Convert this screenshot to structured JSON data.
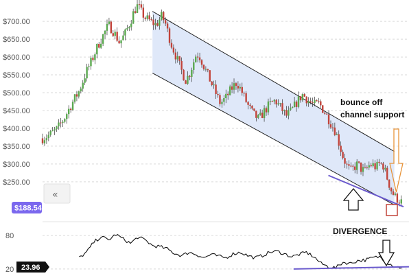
{
  "chart_data": [
    {
      "type": "candlestick",
      "y_ticks": [
        "$700.00",
        "$650.00",
        "$600.00",
        "$550.00",
        "$500.00",
        "$450.00",
        "$400.00",
        "$350.00",
        "$300.00",
        "$250.00"
      ],
      "ylim": [
        190,
        760
      ],
      "last_price_label": "$188.54",
      "channel": {
        "upper": [
          [
            0.3,
            728
          ],
          [
            0.96,
            335
          ]
        ],
        "lower": [
          [
            0.3,
            555
          ],
          [
            0.96,
            185
          ]
        ]
      },
      "support_trendline": [
        [
          0.78,
          268
        ],
        [
          0.985,
          180
        ]
      ],
      "price_path": [
        [
          0.0,
          372
        ],
        [
          0.02,
          382
        ],
        [
          0.04,
          398
        ],
        [
          0.06,
          430
        ],
        [
          0.08,
          470
        ],
        [
          0.1,
          505
        ],
        [
          0.12,
          560
        ],
        [
          0.135,
          592
        ],
        [
          0.15,
          630
        ],
        [
          0.165,
          660
        ],
        [
          0.18,
          690
        ],
        [
          0.195,
          670
        ],
        [
          0.21,
          640
        ],
        [
          0.225,
          665
        ],
        [
          0.24,
          700
        ],
        [
          0.25,
          730
        ],
        [
          0.26,
          745
        ],
        [
          0.27,
          725
        ],
        [
          0.28,
          710
        ],
        [
          0.295,
          700
        ],
        [
          0.31,
          690
        ],
        [
          0.325,
          715
        ],
        [
          0.335,
          695
        ],
        [
          0.35,
          640
        ],
        [
          0.365,
          600
        ],
        [
          0.38,
          560
        ],
        [
          0.39,
          535
        ],
        [
          0.4,
          550
        ],
        [
          0.41,
          580
        ],
        [
          0.42,
          610
        ],
        [
          0.43,
          600
        ],
        [
          0.44,
          575
        ],
        [
          0.455,
          540
        ],
        [
          0.47,
          505
        ],
        [
          0.485,
          470
        ],
        [
          0.5,
          485
        ],
        [
          0.515,
          510
        ],
        [
          0.53,
          530
        ],
        [
          0.545,
          500
        ],
        [
          0.56,
          465
        ],
        [
          0.575,
          440
        ],
        [
          0.59,
          425
        ],
        [
          0.605,
          448
        ],
        [
          0.62,
          468
        ],
        [
          0.635,
          478
        ],
        [
          0.65,
          458
        ],
        [
          0.665,
          435
        ],
        [
          0.68,
          450
        ],
        [
          0.695,
          475
        ],
        [
          0.71,
          495
        ],
        [
          0.725,
          478
        ],
        [
          0.74,
          465
        ],
        [
          0.755,
          470
        ],
        [
          0.77,
          445
        ],
        [
          0.785,
          418
        ],
        [
          0.8,
          390
        ],
        [
          0.81,
          355
        ],
        [
          0.82,
          320
        ],
        [
          0.83,
          295
        ],
        [
          0.84,
          280
        ],
        [
          0.85,
          290
        ],
        [
          0.86,
          300
        ],
        [
          0.87,
          285
        ],
        [
          0.88,
          280
        ],
        [
          0.89,
          295
        ],
        [
          0.9,
          298
        ],
        [
          0.91,
          290
        ],
        [
          0.92,
          302
        ],
        [
          0.93,
          295
        ],
        [
          0.94,
          262
        ],
        [
          0.95,
          230
        ],
        [
          0.96,
          210
        ],
        [
          0.97,
          200
        ],
        [
          0.98,
          193
        ]
      ]
    },
    {
      "type": "line",
      "series": [],
      "y_ticks": [
        "80",
        "20"
      ],
      "ylim": [
        10,
        90
      ],
      "last_value_label": "23.96",
      "divergence_trendline": [
        [
          0.76,
          20
        ],
        [
          1.0,
          24
        ]
      ],
      "rsi_path": [
        [
          0.1,
          40
        ],
        [
          0.12,
          50
        ],
        [
          0.14,
          68
        ],
        [
          0.16,
          78
        ],
        [
          0.18,
          72
        ],
        [
          0.2,
          82
        ],
        [
          0.22,
          74
        ],
        [
          0.24,
          66
        ],
        [
          0.26,
          77
        ],
        [
          0.28,
          72
        ],
        [
          0.3,
          62
        ],
        [
          0.32,
          60
        ],
        [
          0.34,
          56
        ],
        [
          0.36,
          48
        ],
        [
          0.38,
          44
        ],
        [
          0.4,
          50
        ],
        [
          0.42,
          46
        ],
        [
          0.44,
          40
        ],
        [
          0.46,
          46
        ],
        [
          0.48,
          43
        ],
        [
          0.5,
          40
        ],
        [
          0.52,
          47
        ],
        [
          0.54,
          50
        ],
        [
          0.56,
          44
        ],
        [
          0.58,
          40
        ],
        [
          0.6,
          44
        ],
        [
          0.62,
          50
        ],
        [
          0.64,
          52
        ],
        [
          0.66,
          47
        ],
        [
          0.68,
          42
        ],
        [
          0.7,
          46
        ],
        [
          0.72,
          50
        ],
        [
          0.74,
          42
        ],
        [
          0.76,
          30
        ],
        [
          0.78,
          24
        ],
        [
          0.8,
          22
        ],
        [
          0.82,
          32
        ],
        [
          0.84,
          30
        ],
        [
          0.86,
          35
        ],
        [
          0.88,
          36
        ],
        [
          0.9,
          40
        ],
        [
          0.92,
          42
        ],
        [
          0.94,
          32
        ],
        [
          0.96,
          25
        ],
        [
          0.98,
          22
        ]
      ]
    }
  ],
  "annotations": {
    "bounce_line1": "bounce off",
    "bounce_line2": "channel support",
    "divergence": "DIVERGENCE"
  },
  "colors": {
    "up": "#5aa84f",
    "down": "#c2433a",
    "channel_fill": "#dfe8f9",
    "support_line": "#6a5acd",
    "price_badge": "#7b68ee",
    "rsi_badge": "#111111",
    "down_arrow": "#e8943a",
    "marker_box": "#c2433a"
  },
  "icons": {
    "collapse": "double-chevron-left-icon",
    "up_arrow": "outline-up-arrow-icon",
    "down_arrow": "outline-down-arrow-icon"
  }
}
